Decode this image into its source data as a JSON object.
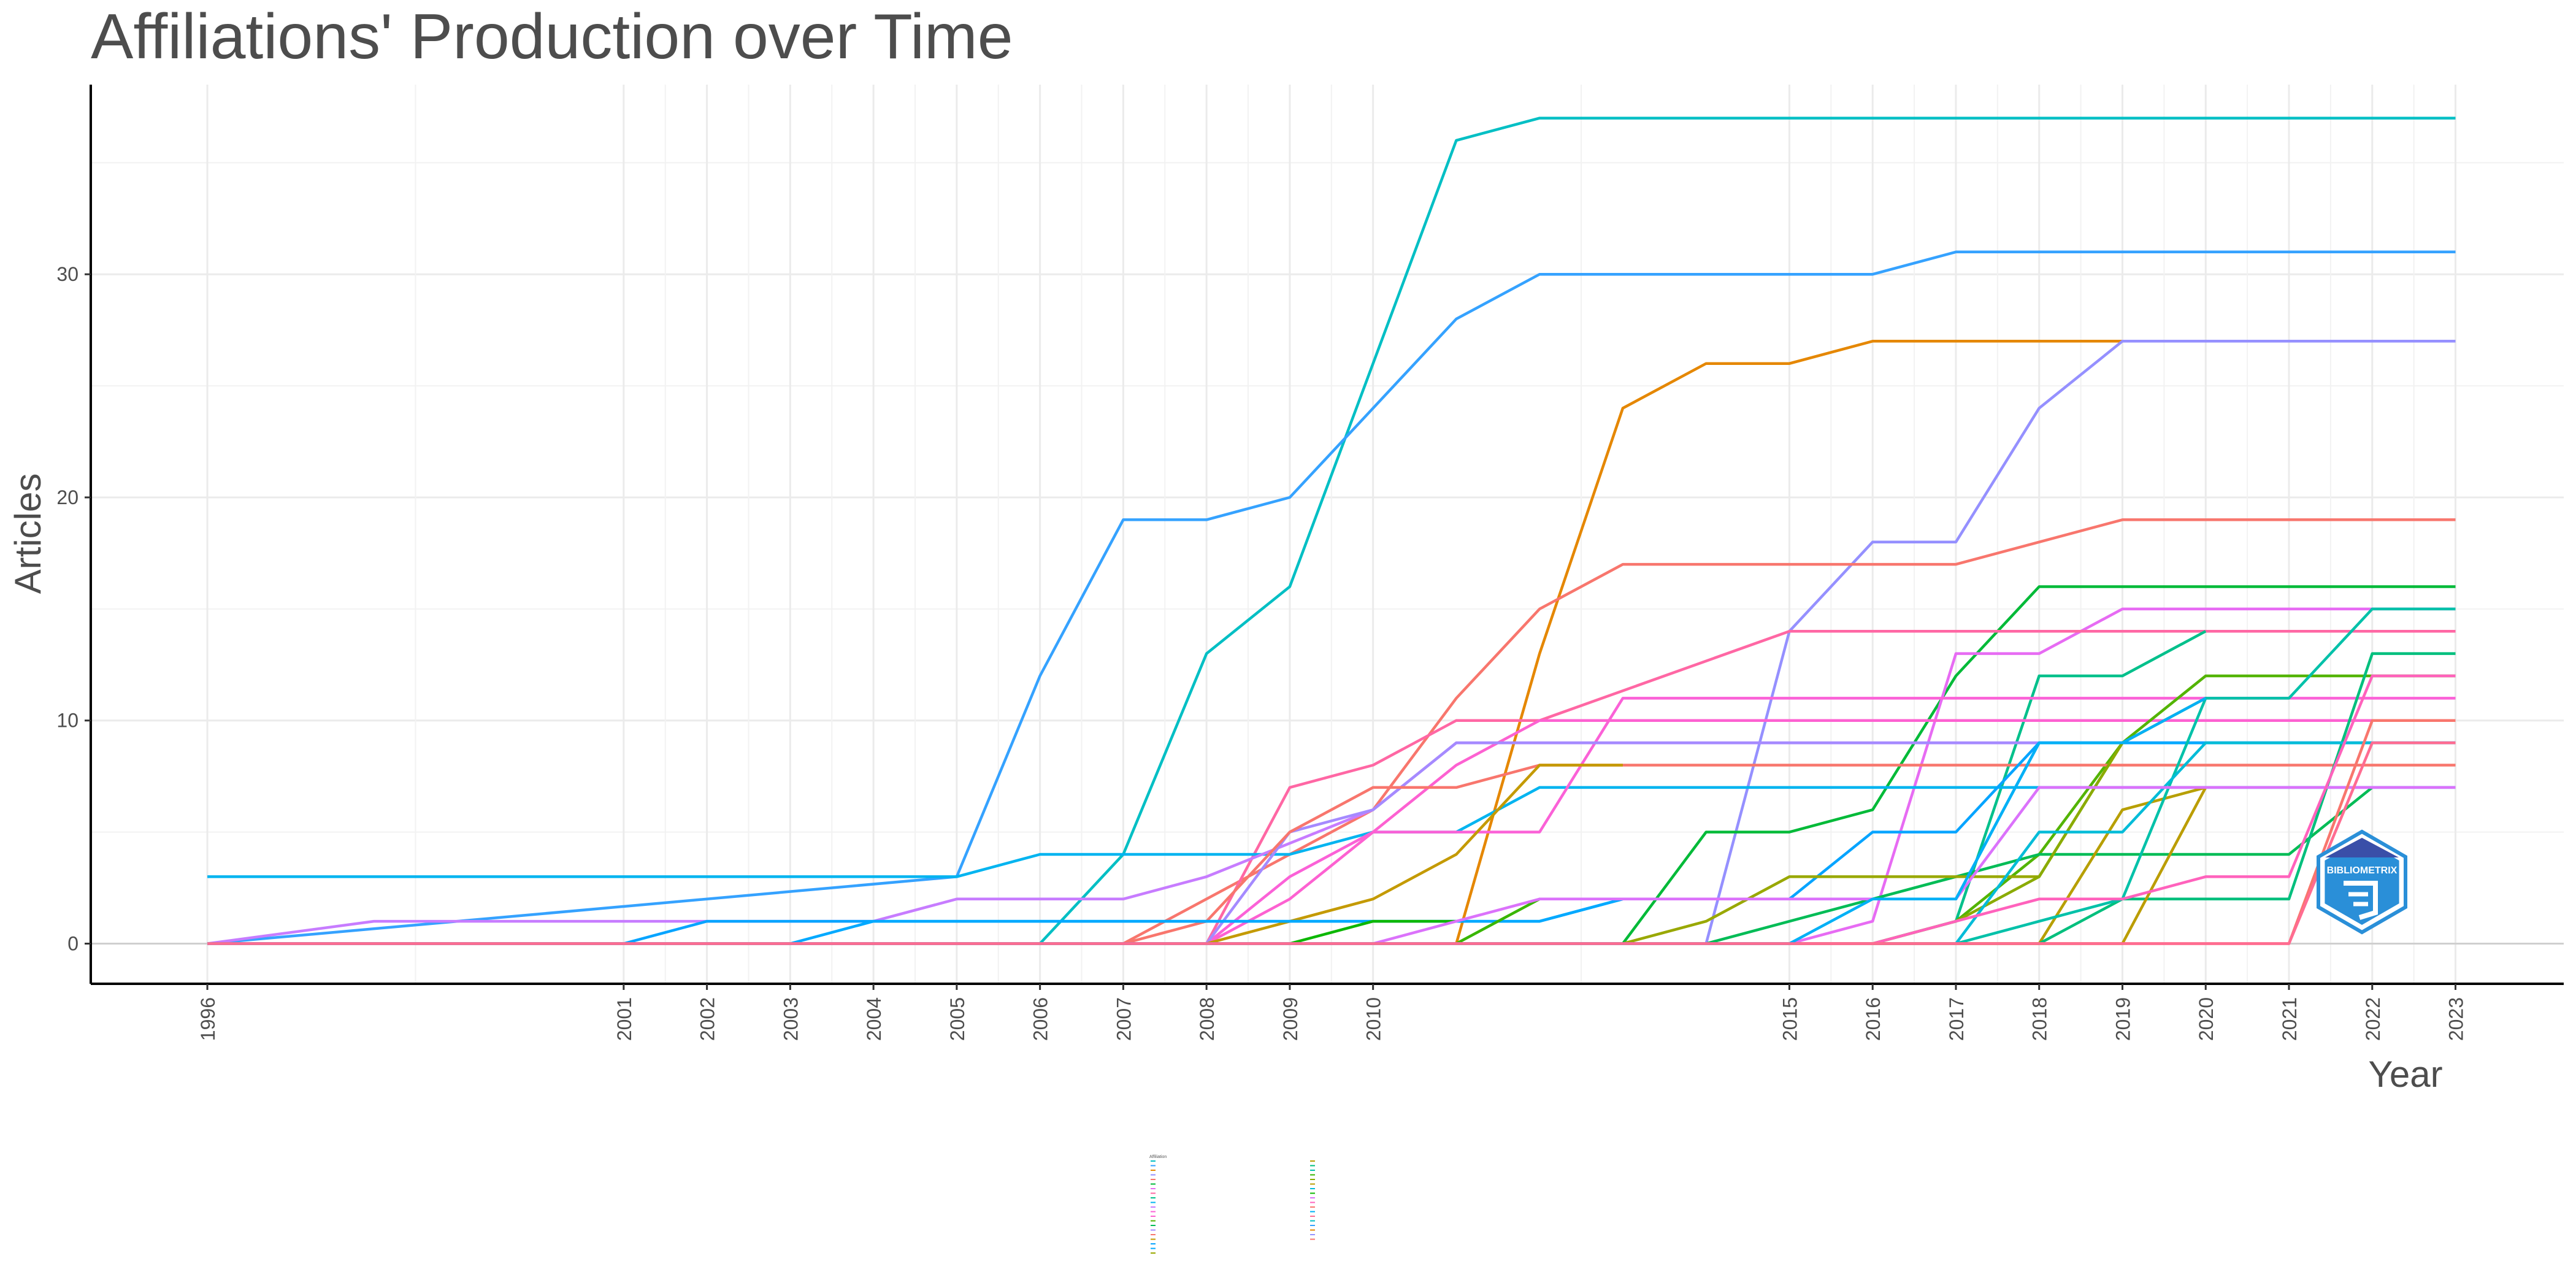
{
  "chart_data": {
    "type": "line",
    "title": "Affiliations' Production over Time",
    "xlabel": "Year",
    "ylabel": "Articles",
    "x_ticks": [
      1996,
      2001,
      2002,
      2003,
      2004,
      2005,
      2006,
      2007,
      2008,
      2009,
      2010,
      2015,
      2016,
      2017,
      2018,
      2019,
      2020,
      2021,
      2022,
      2023
    ],
    "x_range": [
      1994.6,
      2024.3
    ],
    "y_ticks": [
      0,
      10,
      20,
      30
    ],
    "ylim": [
      -1.8,
      38.5
    ],
    "grid": true,
    "legend_position": "bottom",
    "legend_title": "Affiliation",
    "series": [
      {
        "color": "#00BFC4",
        "points": [
          [
            1996,
            0
          ],
          [
            2006,
            0
          ],
          [
            2007,
            4
          ],
          [
            2008,
            13
          ],
          [
            2009,
            16
          ],
          [
            2011,
            36
          ],
          [
            2012,
            37
          ],
          [
            2023,
            37
          ]
        ]
      },
      {
        "color": "#35A2FF",
        "points": [
          [
            1996,
            0
          ],
          [
            2005,
            3
          ],
          [
            2006,
            12
          ],
          [
            2007,
            19
          ],
          [
            2008,
            19
          ],
          [
            2009,
            20
          ],
          [
            2010,
            24
          ],
          [
            2011,
            28
          ],
          [
            2012,
            30
          ],
          [
            2016,
            30
          ],
          [
            2017,
            31
          ],
          [
            2023,
            31
          ]
        ]
      },
      {
        "color": "#E58700",
        "points": [
          [
            1996,
            0
          ],
          [
            2011,
            0
          ],
          [
            2012,
            13
          ],
          [
            2013,
            24
          ],
          [
            2014,
            26
          ],
          [
            2015,
            26
          ],
          [
            2016,
            27
          ],
          [
            2019,
            27
          ]
        ]
      },
      {
        "color": "#9590FF",
        "points": [
          [
            1996,
            0
          ],
          [
            2014,
            0
          ],
          [
            2015,
            14
          ],
          [
            2016,
            18
          ],
          [
            2017,
            18
          ],
          [
            2018,
            24
          ],
          [
            2019,
            27
          ],
          [
            2023,
            27
          ]
        ]
      },
      {
        "color": "#F8766D",
        "points": [
          [
            1996,
            0
          ],
          [
            2007,
            0
          ],
          [
            2009,
            4
          ],
          [
            2010,
            6
          ],
          [
            2011,
            11
          ],
          [
            2012,
            15
          ],
          [
            2013,
            17
          ],
          [
            2017,
            17
          ],
          [
            2019,
            19
          ],
          [
            2023,
            19
          ]
        ]
      },
      {
        "color": "#00BA38",
        "points": [
          [
            1996,
            0
          ],
          [
            2013,
            0
          ],
          [
            2014,
            5
          ],
          [
            2015,
            5
          ],
          [
            2016,
            6
          ],
          [
            2017,
            12
          ],
          [
            2018,
            16
          ],
          [
            2023,
            16
          ]
        ]
      },
      {
        "color": "#E76BF3",
        "points": [
          [
            1996,
            0
          ],
          [
            2015,
            0
          ],
          [
            2016,
            1
          ],
          [
            2017,
            13
          ],
          [
            2018,
            13
          ],
          [
            2019,
            15
          ],
          [
            2023,
            15
          ]
        ]
      },
      {
        "color": "#FF67A4",
        "points": [
          [
            1996,
            0
          ],
          [
            2008,
            0
          ],
          [
            2009,
            7
          ],
          [
            2010,
            8
          ],
          [
            2011,
            10
          ],
          [
            2012,
            10
          ],
          [
            2015,
            14
          ],
          [
            2023,
            14
          ]
        ]
      },
      {
        "color": "#00C08B",
        "points": [
          [
            1996,
            0
          ],
          [
            2016,
            0
          ],
          [
            2017,
            1
          ],
          [
            2018,
            12
          ],
          [
            2019,
            12
          ],
          [
            2020,
            14
          ]
        ]
      },
      {
        "color": "#00B4F0",
        "points": [
          [
            1996,
            3
          ],
          [
            2004,
            3
          ],
          [
            2005,
            3
          ],
          [
            2006,
            4
          ],
          [
            2008,
            4
          ],
          [
            2009,
            4
          ],
          [
            2010,
            5
          ],
          [
            2011,
            5
          ],
          [
            2012,
            7
          ],
          [
            2023,
            7
          ]
        ]
      },
      {
        "color": "#C77CFF",
        "points": [
          [
            1996,
            0
          ],
          [
            1998,
            1
          ],
          [
            2004,
            1
          ],
          [
            2005,
            2
          ],
          [
            2007,
            2
          ],
          [
            2008,
            3
          ],
          [
            2010,
            6
          ],
          [
            2011,
            9
          ],
          [
            2023,
            9
          ]
        ]
      },
      {
        "color": "#FB61D7",
        "points": [
          [
            1996,
            0
          ],
          [
            2008,
            0
          ],
          [
            2009,
            3
          ],
          [
            2010,
            5
          ],
          [
            2012,
            5
          ],
          [
            2013,
            11
          ],
          [
            2023,
            11
          ]
        ]
      },
      {
        "color": "#FD61D1",
        "points": [
          [
            1996,
            0
          ],
          [
            2008,
            0
          ],
          [
            2009,
            2
          ],
          [
            2010,
            5
          ],
          [
            2011,
            8
          ],
          [
            2012,
            10
          ],
          [
            2023,
            10
          ]
        ]
      },
      {
        "color": "#53B400",
        "points": [
          [
            1996,
            0
          ],
          [
            2016,
            0
          ],
          [
            2017,
            1
          ],
          [
            2018,
            4
          ],
          [
            2019,
            9
          ],
          [
            2020,
            12
          ],
          [
            2023,
            12
          ]
        ]
      },
      {
        "color": "#00BC56",
        "points": [
          [
            1996,
            0
          ],
          [
            2014,
            0
          ],
          [
            2016,
            2
          ],
          [
            2017,
            3
          ],
          [
            2018,
            4
          ],
          [
            2021,
            4
          ],
          [
            2022,
            7
          ]
        ]
      },
      {
        "color": "#A58AFF",
        "points": [
          [
            1996,
            0
          ],
          [
            2008,
            0
          ],
          [
            2009,
            5
          ],
          [
            2010,
            6
          ],
          [
            2011,
            9
          ],
          [
            2023,
            9
          ]
        ]
      },
      {
        "color": "#F8766D",
        "points": [
          [
            1996,
            0
          ],
          [
            2007,
            0
          ],
          [
            2008,
            1
          ],
          [
            2009,
            5
          ],
          [
            2010,
            7
          ],
          [
            2011,
            7
          ],
          [
            2012,
            8
          ],
          [
            2023,
            8
          ]
        ]
      },
      {
        "color": "#C49A00",
        "points": [
          [
            1996,
            0
          ],
          [
            2008,
            0
          ],
          [
            2010,
            2
          ],
          [
            2011,
            4
          ],
          [
            2012,
            8
          ],
          [
            2013,
            8
          ]
        ]
      },
      {
        "color": "#06A4FF",
        "points": [
          [
            1996,
            0
          ],
          [
            2001,
            0
          ],
          [
            2002,
            1
          ],
          [
            2004,
            1
          ],
          [
            2008,
            1
          ],
          [
            2009,
            1
          ],
          [
            2012,
            1
          ],
          [
            2013,
            2
          ],
          [
            2015,
            2
          ],
          [
            2016,
            5
          ],
          [
            2017,
            5
          ],
          [
            2018,
            9
          ],
          [
            2022,
            9
          ]
        ]
      },
      {
        "color": "#00A9FF",
        "points": [
          [
            1996,
            0
          ],
          [
            2003,
            0
          ],
          [
            2004,
            1
          ],
          [
            2012,
            1
          ],
          [
            2013,
            2
          ],
          [
            2017,
            2
          ],
          [
            2018,
            9
          ],
          [
            2023,
            9
          ]
        ]
      },
      {
        "color": "#99A800",
        "points": [
          [
            1996,
            0
          ],
          [
            2013,
            0
          ],
          [
            2014,
            1
          ],
          [
            2015,
            3
          ],
          [
            2017,
            3
          ],
          [
            2018,
            3
          ],
          [
            2019,
            9
          ],
          [
            2020,
            11
          ]
        ]
      },
      {
        "color": "#B79F00",
        "points": [
          [
            1996,
            0
          ],
          [
            2018,
            0
          ],
          [
            2019,
            6
          ],
          [
            2020,
            7
          ]
        ]
      },
      {
        "color": "#00BF7D",
        "points": [
          [
            1996,
            0
          ],
          [
            2017,
            0
          ],
          [
            2018,
            0
          ],
          [
            2019,
            2
          ],
          [
            2021,
            2
          ],
          [
            2022,
            13
          ],
          [
            2023,
            13
          ]
        ]
      },
      {
        "color": "#00C1A9",
        "points": [
          [
            1996,
            0
          ],
          [
            2017,
            0
          ],
          [
            2018,
            1
          ],
          [
            2019,
            2
          ],
          [
            2020,
            11
          ],
          [
            2021,
            11
          ],
          [
            2022,
            15
          ],
          [
            2023,
            15
          ]
        ]
      },
      {
        "color": "#39B600",
        "points": [
          [
            1996,
            0
          ],
          [
            2011,
            0
          ],
          [
            2012,
            2
          ],
          [
            2013,
            2
          ]
        ]
      },
      {
        "color": "#8AAB00",
        "points": [
          [
            1996,
            0
          ],
          [
            2016,
            0
          ],
          [
            2017,
            1
          ],
          [
            2018,
            3
          ],
          [
            2019,
            9
          ]
        ]
      },
      {
        "color": "#BB9D00",
        "points": [
          [
            1996,
            0
          ],
          [
            2019,
            0
          ],
          [
            2020,
            7
          ]
        ]
      },
      {
        "color": "#00BCD8",
        "points": [
          [
            1996,
            0
          ],
          [
            2017,
            0
          ],
          [
            2018,
            5
          ],
          [
            2019,
            5
          ],
          [
            2020,
            9
          ],
          [
            2023,
            9
          ]
        ]
      },
      {
        "color": "#0CB702",
        "points": [
          [
            1996,
            0
          ],
          [
            2009,
            0
          ],
          [
            2010,
            1
          ],
          [
            2011,
            1
          ]
        ]
      },
      {
        "color": "#DB72FB",
        "points": [
          [
            1996,
            0
          ],
          [
            2010,
            0
          ],
          [
            2011,
            1
          ],
          [
            2012,
            2
          ],
          [
            2017,
            2
          ],
          [
            2018,
            7
          ],
          [
            2023,
            7
          ]
        ]
      },
      {
        "color": "#FF62BC",
        "points": [
          [
            1996,
            0
          ],
          [
            2016,
            0
          ],
          [
            2017,
            1
          ],
          [
            2018,
            2
          ],
          [
            2019,
            2
          ],
          [
            2020,
            3
          ],
          [
            2021,
            3
          ],
          [
            2022,
            12
          ],
          [
            2023,
            12
          ]
        ]
      },
      {
        "color": "#F8766D",
        "points": [
          [
            1996,
            0
          ],
          [
            2021,
            0
          ],
          [
            2022,
            10
          ],
          [
            2023,
            10
          ]
        ]
      },
      {
        "color": "#00B0F6",
        "points": [
          [
            1996,
            0
          ],
          [
            2015,
            0
          ],
          [
            2016,
            2
          ],
          [
            2017,
            2
          ],
          [
            2018,
            9
          ],
          [
            2019,
            9
          ],
          [
            2020,
            11
          ]
        ]
      },
      {
        "color": "#FF6C91",
        "points": [
          [
            1996,
            0
          ],
          [
            2021,
            0
          ],
          [
            2022,
            9
          ],
          [
            2023,
            9
          ]
        ]
      }
    ]
  },
  "legend_labels_col1": [
    "",
    "",
    "",
    "",
    "",
    "",
    "",
    "",
    "",
    "",
    "",
    "",
    "",
    "",
    "",
    "",
    "",
    "",
    "",
    "",
    ""
  ],
  "legend_labels_col2": [
    "",
    "",
    "",
    "",
    "",
    "",
    "",
    "",
    "",
    "",
    "",
    "",
    "",
    "",
    "",
    "",
    "",
    ""
  ],
  "logo": {
    "text": "BIBLIOMETRIX",
    "color": "#2A8FD8"
  }
}
